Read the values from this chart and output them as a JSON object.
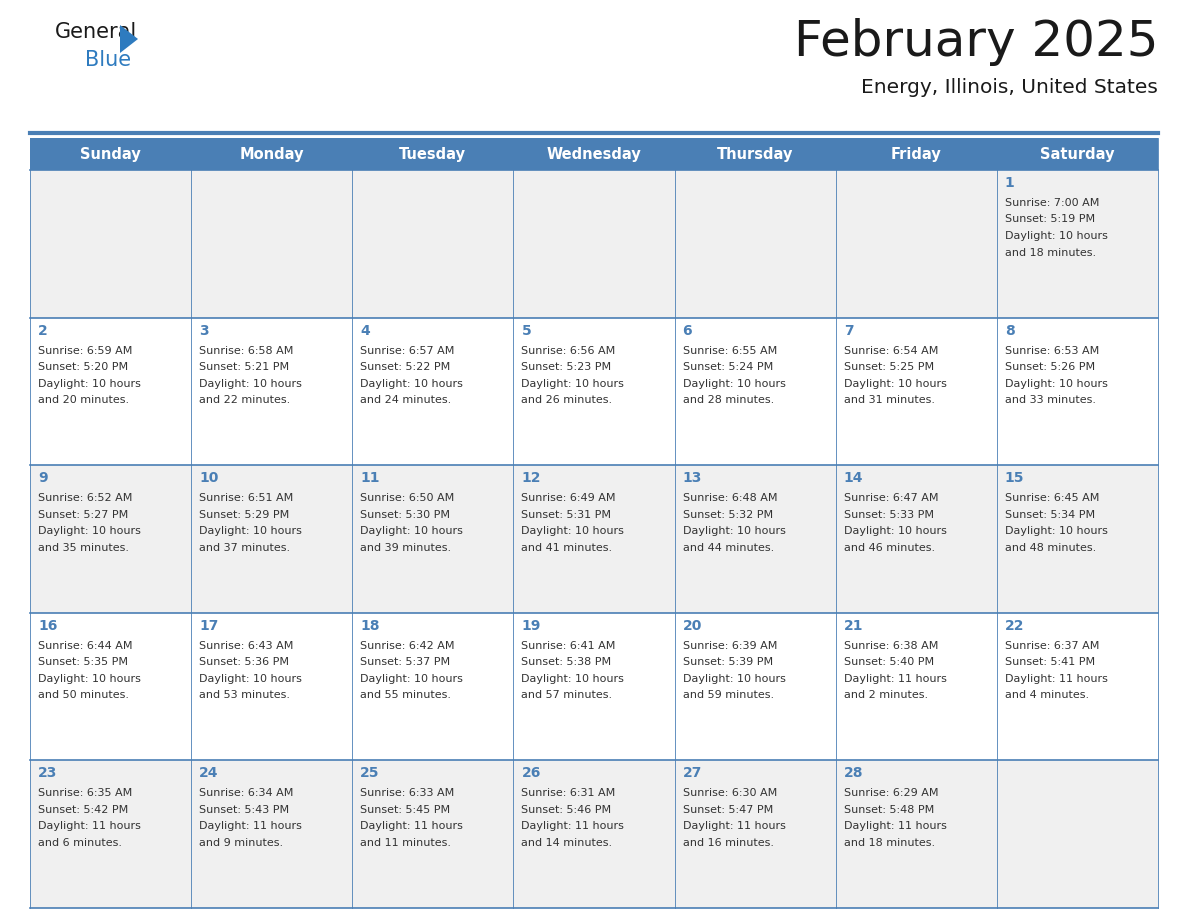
{
  "title": "February 2025",
  "subtitle": "Energy, Illinois, United States",
  "days_of_week": [
    "Sunday",
    "Monday",
    "Tuesday",
    "Wednesday",
    "Thursday",
    "Friday",
    "Saturday"
  ],
  "header_bg": "#4a7fb5",
  "header_text_color": "#ffffff",
  "cell_bg_odd": "#f0f0f0",
  "cell_bg_even": "#ffffff",
  "border_color": "#4a7fb5",
  "day_number_color": "#4a7fb5",
  "cell_text_color": "#333333",
  "title_color": "#1a1a1a",
  "subtitle_color": "#1a1a1a",
  "logo_general_color": "#1a1a1a",
  "logo_blue_color": "#2e7bbf",
  "separator_color": "#4a7fb5",
  "weeks": [
    [
      null,
      null,
      null,
      null,
      null,
      null,
      {
        "day": 1,
        "sunrise": "7:00 AM",
        "sunset": "5:19 PM",
        "daylight": "10 hours and 18 minutes."
      }
    ],
    [
      {
        "day": 2,
        "sunrise": "6:59 AM",
        "sunset": "5:20 PM",
        "daylight": "10 hours and 20 minutes."
      },
      {
        "day": 3,
        "sunrise": "6:58 AM",
        "sunset": "5:21 PM",
        "daylight": "10 hours and 22 minutes."
      },
      {
        "day": 4,
        "sunrise": "6:57 AM",
        "sunset": "5:22 PM",
        "daylight": "10 hours and 24 minutes."
      },
      {
        "day": 5,
        "sunrise": "6:56 AM",
        "sunset": "5:23 PM",
        "daylight": "10 hours and 26 minutes."
      },
      {
        "day": 6,
        "sunrise": "6:55 AM",
        "sunset": "5:24 PM",
        "daylight": "10 hours and 28 minutes."
      },
      {
        "day": 7,
        "sunrise": "6:54 AM",
        "sunset": "5:25 PM",
        "daylight": "10 hours and 31 minutes."
      },
      {
        "day": 8,
        "sunrise": "6:53 AM",
        "sunset": "5:26 PM",
        "daylight": "10 hours and 33 minutes."
      }
    ],
    [
      {
        "day": 9,
        "sunrise": "6:52 AM",
        "sunset": "5:27 PM",
        "daylight": "10 hours and 35 minutes."
      },
      {
        "day": 10,
        "sunrise": "6:51 AM",
        "sunset": "5:29 PM",
        "daylight": "10 hours and 37 minutes."
      },
      {
        "day": 11,
        "sunrise": "6:50 AM",
        "sunset": "5:30 PM",
        "daylight": "10 hours and 39 minutes."
      },
      {
        "day": 12,
        "sunrise": "6:49 AM",
        "sunset": "5:31 PM",
        "daylight": "10 hours and 41 minutes."
      },
      {
        "day": 13,
        "sunrise": "6:48 AM",
        "sunset": "5:32 PM",
        "daylight": "10 hours and 44 minutes."
      },
      {
        "day": 14,
        "sunrise": "6:47 AM",
        "sunset": "5:33 PM",
        "daylight": "10 hours and 46 minutes."
      },
      {
        "day": 15,
        "sunrise": "6:45 AM",
        "sunset": "5:34 PM",
        "daylight": "10 hours and 48 minutes."
      }
    ],
    [
      {
        "day": 16,
        "sunrise": "6:44 AM",
        "sunset": "5:35 PM",
        "daylight": "10 hours and 50 minutes."
      },
      {
        "day": 17,
        "sunrise": "6:43 AM",
        "sunset": "5:36 PM",
        "daylight": "10 hours and 53 minutes."
      },
      {
        "day": 18,
        "sunrise": "6:42 AM",
        "sunset": "5:37 PM",
        "daylight": "10 hours and 55 minutes."
      },
      {
        "day": 19,
        "sunrise": "6:41 AM",
        "sunset": "5:38 PM",
        "daylight": "10 hours and 57 minutes."
      },
      {
        "day": 20,
        "sunrise": "6:39 AM",
        "sunset": "5:39 PM",
        "daylight": "10 hours and 59 minutes."
      },
      {
        "day": 21,
        "sunrise": "6:38 AM",
        "sunset": "5:40 PM",
        "daylight": "11 hours and 2 minutes."
      },
      {
        "day": 22,
        "sunrise": "6:37 AM",
        "sunset": "5:41 PM",
        "daylight": "11 hours and 4 minutes."
      }
    ],
    [
      {
        "day": 23,
        "sunrise": "6:35 AM",
        "sunset": "5:42 PM",
        "daylight": "11 hours and 6 minutes."
      },
      {
        "day": 24,
        "sunrise": "6:34 AM",
        "sunset": "5:43 PM",
        "daylight": "11 hours and 9 minutes."
      },
      {
        "day": 25,
        "sunrise": "6:33 AM",
        "sunset": "5:45 PM",
        "daylight": "11 hours and 11 minutes."
      },
      {
        "day": 26,
        "sunrise": "6:31 AM",
        "sunset": "5:46 PM",
        "daylight": "11 hours and 14 minutes."
      },
      {
        "day": 27,
        "sunrise": "6:30 AM",
        "sunset": "5:47 PM",
        "daylight": "11 hours and 16 minutes."
      },
      {
        "day": 28,
        "sunrise": "6:29 AM",
        "sunset": "5:48 PM",
        "daylight": "11 hours and 18 minutes."
      },
      null
    ]
  ]
}
